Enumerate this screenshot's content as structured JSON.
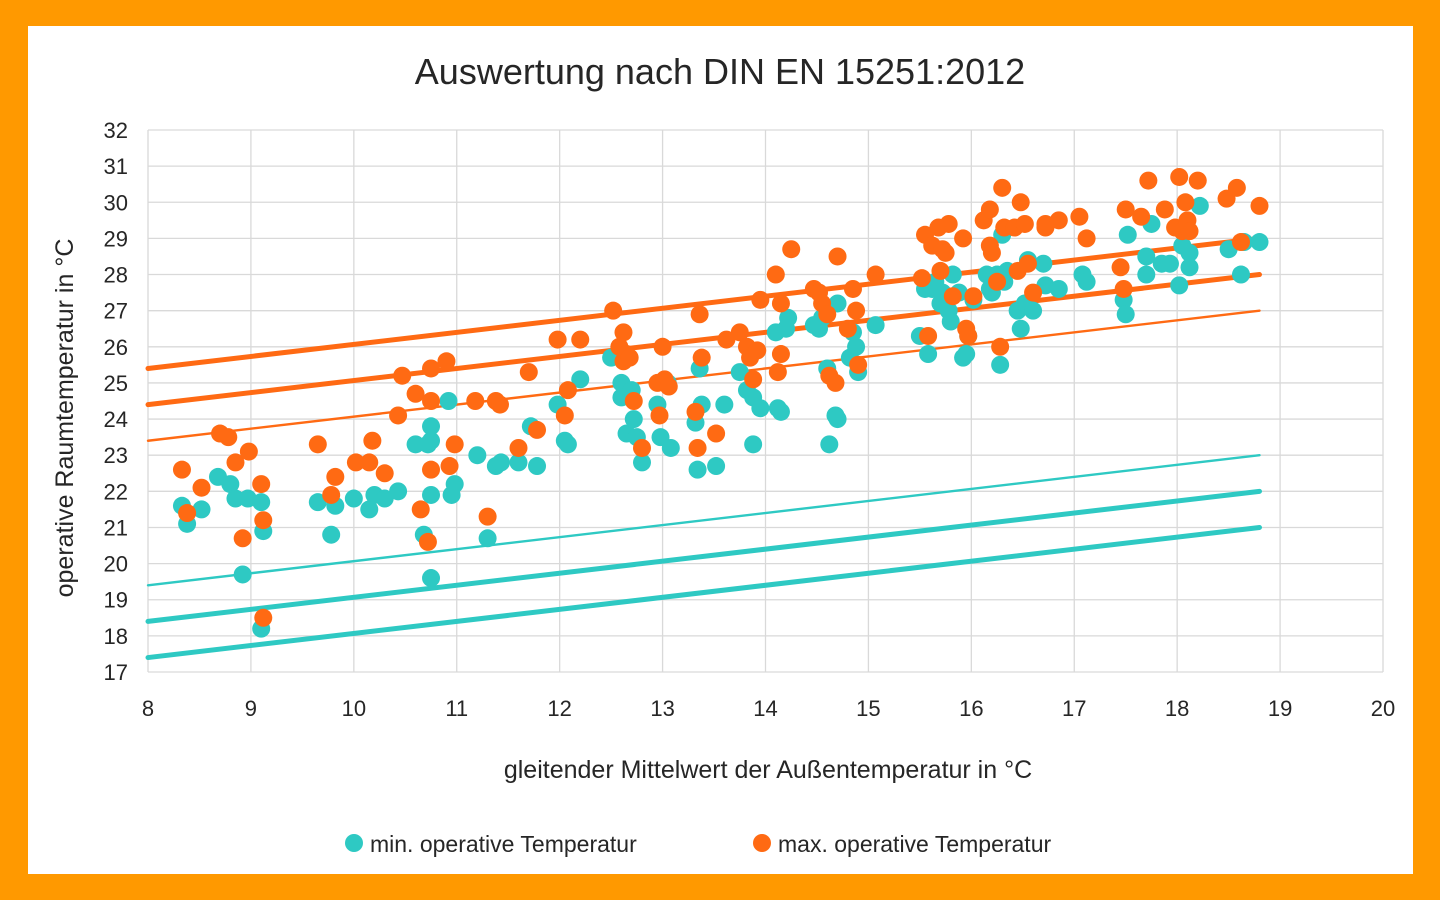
{
  "colors": {
    "frame": "#FF9900",
    "background": "#FFFFFF",
    "min_series": "#2EC9C3",
    "max_series": "#FF6A13",
    "grid": "#D9D9D9",
    "text": "#262626"
  },
  "chart_data": {
    "type": "scatter",
    "title": "Auswertung nach DIN EN 15251:2012",
    "xlabel": "gleitender Mittelwert der Außentemperatur in °C",
    "ylabel": "operative Raumtemperatur in °C",
    "xlim": [
      8,
      20
    ],
    "ylim": [
      17,
      32
    ],
    "x_ticks": [
      "8",
      "9",
      "10",
      "11",
      "12",
      "13",
      "14",
      "15",
      "16",
      "17",
      "18",
      "19",
      "20"
    ],
    "y_ticks": [
      "17",
      "18",
      "19",
      "20",
      "21",
      "22",
      "23",
      "24",
      "25",
      "26",
      "27",
      "28",
      "29",
      "30",
      "31",
      "32"
    ],
    "grid": true,
    "legend_position": "bottom",
    "series": [
      {
        "name": "min. operative Temperatur",
        "color": "#2EC9C3",
        "points": [
          [
            8.33,
            21.6
          ],
          [
            8.38,
            21.1
          ],
          [
            8.52,
            21.5
          ],
          [
            8.68,
            22.4
          ],
          [
            8.8,
            22.2
          ],
          [
            8.85,
            21.8
          ],
          [
            8.92,
            19.7
          ],
          [
            8.97,
            21.8
          ],
          [
            9.1,
            21.7
          ],
          [
            9.12,
            20.9
          ],
          [
            9.1,
            18.2
          ],
          [
            9.65,
            21.7
          ],
          [
            9.78,
            20.8
          ],
          [
            9.82,
            21.6
          ],
          [
            10.0,
            21.8
          ],
          [
            10.15,
            21.5
          ],
          [
            10.2,
            21.9
          ],
          [
            10.3,
            21.8
          ],
          [
            10.43,
            22.0
          ],
          [
            10.6,
            23.3
          ],
          [
            10.68,
            20.8
          ],
          [
            10.72,
            23.3
          ],
          [
            10.75,
            19.6
          ],
          [
            10.75,
            23.8
          ],
          [
            10.75,
            23.4
          ],
          [
            10.75,
            21.9
          ],
          [
            10.92,
            24.5
          ],
          [
            10.95,
            21.9
          ],
          [
            10.98,
            22.2
          ],
          [
            11.2,
            23.0
          ],
          [
            11.3,
            20.7
          ],
          [
            11.38,
            22.7
          ],
          [
            11.43,
            22.8
          ],
          [
            11.6,
            22.8
          ],
          [
            11.72,
            23.8
          ],
          [
            11.78,
            22.7
          ],
          [
            11.98,
            24.4
          ],
          [
            12.05,
            23.4
          ],
          [
            12.08,
            23.3
          ],
          [
            12.2,
            25.1
          ],
          [
            12.5,
            25.7
          ],
          [
            12.6,
            25.0
          ],
          [
            12.6,
            24.6
          ],
          [
            12.65,
            23.6
          ],
          [
            12.7,
            24.8
          ],
          [
            12.72,
            24.0
          ],
          [
            12.75,
            23.5
          ],
          [
            12.8,
            22.8
          ],
          [
            12.95,
            24.4
          ],
          [
            12.98,
            23.5
          ],
          [
            13.05,
            25.0
          ],
          [
            13.08,
            23.2
          ],
          [
            13.32,
            23.9
          ],
          [
            13.34,
            22.6
          ],
          [
            13.36,
            25.4
          ],
          [
            13.38,
            24.4
          ],
          [
            13.52,
            22.7
          ],
          [
            13.6,
            24.4
          ],
          [
            13.75,
            25.3
          ],
          [
            13.82,
            24.8
          ],
          [
            13.88,
            24.6
          ],
          [
            13.88,
            23.3
          ],
          [
            13.95,
            24.3
          ],
          [
            14.1,
            26.4
          ],
          [
            14.12,
            24.3
          ],
          [
            14.15,
            24.2
          ],
          [
            14.2,
            26.5
          ],
          [
            14.22,
            26.8
          ],
          [
            14.47,
            26.6
          ],
          [
            14.52,
            26.5
          ],
          [
            14.55,
            26.8
          ],
          [
            14.6,
            25.4
          ],
          [
            14.62,
            23.3
          ],
          [
            14.68,
            24.1
          ],
          [
            14.7,
            24.0
          ],
          [
            14.7,
            27.2
          ],
          [
            14.82,
            25.7
          ],
          [
            14.85,
            26.4
          ],
          [
            14.88,
            26.0
          ],
          [
            14.9,
            25.3
          ],
          [
            15.07,
            26.6
          ],
          [
            15.5,
            26.3
          ],
          [
            15.55,
            27.6
          ],
          [
            15.58,
            25.8
          ],
          [
            15.62,
            27.6
          ],
          [
            15.65,
            27.8
          ],
          [
            15.7,
            27.2
          ],
          [
            15.72,
            27.5
          ],
          [
            15.75,
            27.4
          ],
          [
            15.78,
            27.0
          ],
          [
            15.8,
            26.7
          ],
          [
            15.82,
            28.0
          ],
          [
            15.88,
            27.5
          ],
          [
            15.92,
            25.7
          ],
          [
            15.95,
            25.8
          ],
          [
            15.97,
            26.3
          ],
          [
            16.02,
            27.3
          ],
          [
            16.15,
            28.0
          ],
          [
            16.18,
            27.6
          ],
          [
            16.2,
            27.5
          ],
          [
            16.25,
            28.0
          ],
          [
            16.28,
            25.5
          ],
          [
            16.3,
            29.1
          ],
          [
            16.32,
            27.8
          ],
          [
            16.35,
            28.1
          ],
          [
            16.45,
            27.0
          ],
          [
            16.48,
            26.5
          ],
          [
            16.52,
            27.2
          ],
          [
            16.55,
            28.4
          ],
          [
            16.6,
            27.0
          ],
          [
            16.7,
            28.3
          ],
          [
            16.72,
            27.7
          ],
          [
            16.85,
            27.6
          ],
          [
            17.08,
            28.0
          ],
          [
            17.12,
            27.8
          ],
          [
            17.48,
            27.3
          ],
          [
            17.5,
            26.9
          ],
          [
            17.52,
            29.1
          ],
          [
            17.7,
            28.0
          ],
          [
            17.7,
            28.5
          ],
          [
            17.75,
            29.4
          ],
          [
            17.85,
            28.3
          ],
          [
            17.93,
            28.3
          ],
          [
            18.02,
            27.7
          ],
          [
            18.05,
            28.8
          ],
          [
            18.12,
            28.6
          ],
          [
            18.12,
            28.2
          ],
          [
            18.22,
            29.9
          ],
          [
            18.5,
            28.7
          ],
          [
            18.62,
            28.0
          ],
          [
            18.65,
            28.9
          ],
          [
            18.8,
            28.9
          ]
        ]
      },
      {
        "name": "max. operative Temperatur",
        "color": "#FF6A13",
        "points": [
          [
            8.33,
            22.6
          ],
          [
            8.38,
            21.4
          ],
          [
            8.52,
            22.1
          ],
          [
            8.7,
            23.6
          ],
          [
            8.78,
            23.5
          ],
          [
            8.85,
            22.8
          ],
          [
            8.92,
            20.7
          ],
          [
            8.98,
            23.1
          ],
          [
            9.1,
            22.2
          ],
          [
            9.12,
            21.2
          ],
          [
            9.12,
            18.5
          ],
          [
            9.65,
            23.3
          ],
          [
            9.78,
            21.9
          ],
          [
            9.82,
            22.4
          ],
          [
            10.02,
            22.8
          ],
          [
            10.15,
            22.8
          ],
          [
            10.18,
            23.4
          ],
          [
            10.3,
            22.5
          ],
          [
            10.43,
            24.1
          ],
          [
            10.47,
            25.2
          ],
          [
            10.6,
            24.7
          ],
          [
            10.65,
            21.5
          ],
          [
            10.72,
            20.6
          ],
          [
            10.75,
            22.6
          ],
          [
            10.75,
            25.4
          ],
          [
            10.75,
            24.5
          ],
          [
            10.9,
            25.6
          ],
          [
            10.93,
            22.7
          ],
          [
            10.98,
            23.3
          ],
          [
            11.18,
            24.5
          ],
          [
            11.3,
            21.3
          ],
          [
            11.38,
            24.5
          ],
          [
            11.42,
            24.4
          ],
          [
            11.6,
            23.2
          ],
          [
            11.7,
            25.3
          ],
          [
            11.78,
            23.7
          ],
          [
            11.98,
            26.2
          ],
          [
            12.05,
            24.1
          ],
          [
            12.08,
            24.8
          ],
          [
            12.2,
            26.2
          ],
          [
            12.52,
            27.0
          ],
          [
            12.58,
            26.0
          ],
          [
            12.62,
            26.4
          ],
          [
            12.62,
            25.6
          ],
          [
            12.65,
            25.8
          ],
          [
            12.68,
            25.7
          ],
          [
            12.72,
            24.5
          ],
          [
            12.8,
            23.2
          ],
          [
            12.95,
            25.0
          ],
          [
            12.97,
            24.1
          ],
          [
            13.0,
            26.0
          ],
          [
            13.02,
            25.1
          ],
          [
            13.06,
            24.9
          ],
          [
            13.32,
            24.2
          ],
          [
            13.34,
            23.2
          ],
          [
            13.36,
            26.9
          ],
          [
            13.38,
            25.7
          ],
          [
            13.52,
            23.6
          ],
          [
            13.62,
            26.2
          ],
          [
            13.75,
            26.4
          ],
          [
            13.82,
            26.0
          ],
          [
            13.85,
            25.7
          ],
          [
            13.88,
            25.1
          ],
          [
            13.92,
            25.9
          ],
          [
            13.95,
            27.3
          ],
          [
            14.1,
            28.0
          ],
          [
            14.12,
            25.3
          ],
          [
            14.15,
            27.2
          ],
          [
            14.15,
            25.8
          ],
          [
            14.25,
            28.7
          ],
          [
            14.47,
            27.6
          ],
          [
            14.52,
            27.5
          ],
          [
            14.55,
            27.2
          ],
          [
            14.6,
            26.9
          ],
          [
            14.62,
            25.2
          ],
          [
            14.68,
            25.0
          ],
          [
            14.7,
            28.5
          ],
          [
            14.8,
            26.5
          ],
          [
            14.85,
            27.6
          ],
          [
            14.88,
            27.0
          ],
          [
            14.9,
            25.5
          ],
          [
            15.07,
            28.0
          ],
          [
            15.52,
            27.9
          ],
          [
            15.55,
            29.1
          ],
          [
            15.58,
            26.3
          ],
          [
            15.62,
            28.8
          ],
          [
            15.68,
            29.3
          ],
          [
            15.7,
            28.1
          ],
          [
            15.72,
            28.7
          ],
          [
            15.75,
            28.6
          ],
          [
            15.78,
            29.4
          ],
          [
            15.82,
            27.4
          ],
          [
            15.92,
            29.0
          ],
          [
            15.95,
            26.5
          ],
          [
            15.97,
            26.3
          ],
          [
            16.02,
            27.4
          ],
          [
            16.12,
            29.5
          ],
          [
            16.18,
            29.8
          ],
          [
            16.18,
            28.8
          ],
          [
            16.2,
            28.6
          ],
          [
            16.25,
            27.8
          ],
          [
            16.28,
            26.0
          ],
          [
            16.3,
            30.4
          ],
          [
            16.32,
            29.3
          ],
          [
            16.42,
            29.3
          ],
          [
            16.45,
            28.1
          ],
          [
            16.48,
            30.0
          ],
          [
            16.52,
            29.4
          ],
          [
            16.55,
            28.3
          ],
          [
            16.6,
            27.5
          ],
          [
            16.72,
            29.4
          ],
          [
            16.72,
            29.3
          ],
          [
            16.85,
            29.5
          ],
          [
            17.05,
            29.6
          ],
          [
            17.12,
            29.0
          ],
          [
            17.45,
            28.2
          ],
          [
            17.48,
            27.6
          ],
          [
            17.5,
            29.8
          ],
          [
            17.65,
            29.6
          ],
          [
            17.72,
            30.6
          ],
          [
            17.88,
            29.8
          ],
          [
            17.98,
            29.3
          ],
          [
            18.02,
            30.7
          ],
          [
            18.05,
            29.2
          ],
          [
            18.08,
            30.0
          ],
          [
            18.1,
            29.5
          ],
          [
            18.12,
            29.2
          ],
          [
            18.2,
            30.6
          ],
          [
            18.48,
            30.1
          ],
          [
            18.58,
            30.4
          ],
          [
            18.62,
            28.9
          ],
          [
            18.8,
            29.9
          ]
        ]
      }
    ],
    "reference_lines": [
      {
        "color": "#FF6A13",
        "weight": "thick",
        "x": [
          8,
          18.8
        ],
        "y": [
          25.4,
          29.0
        ]
      },
      {
        "color": "#FF6A13",
        "weight": "thick",
        "x": [
          8,
          18.8
        ],
        "y": [
          24.4,
          28.0
        ]
      },
      {
        "color": "#FF6A13",
        "weight": "thin",
        "x": [
          8,
          18.8
        ],
        "y": [
          23.4,
          27.0
        ]
      },
      {
        "color": "#2EC9C3",
        "weight": "thin",
        "x": [
          8,
          18.8
        ],
        "y": [
          19.4,
          23.0
        ]
      },
      {
        "color": "#2EC9C3",
        "weight": "thick",
        "x": [
          8,
          18.8
        ],
        "y": [
          18.4,
          22.0
        ]
      },
      {
        "color": "#2EC9C3",
        "weight": "thick",
        "x": [
          8,
          18.8
        ],
        "y": [
          17.4,
          21.0
        ]
      }
    ]
  }
}
